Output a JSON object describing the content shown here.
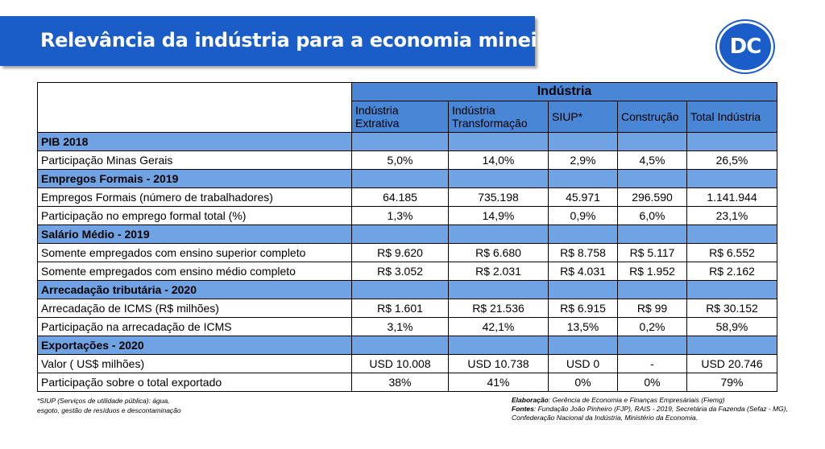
{
  "title": "Relevância da indústria para a economia mineira",
  "logo_text": "DC",
  "colors": {
    "brand_blue": "#1a5cc8",
    "header_blue": "#4a86d6",
    "section_blue": "#6fa3e3"
  },
  "table": {
    "group_header": "Indústria",
    "columns": [
      {
        "line1": "Indústria",
        "line2": "Extrativa"
      },
      {
        "line1": "Indústria",
        "line2": "Transformação"
      },
      {
        "line1": "SIUP*",
        "line2": ""
      },
      {
        "line1": "Construção",
        "line2": ""
      },
      {
        "line1": "Total Indústria",
        "line2": ""
      }
    ],
    "sections": [
      {
        "title": "PIB 2018",
        "rows": [
          {
            "label": "Participação Minas Gerais",
            "values": [
              "5,0%",
              "14,0%",
              "2,9%",
              "4,5%",
              "26,5%"
            ]
          }
        ]
      },
      {
        "title": "Empregos Formais - 2019",
        "rows": [
          {
            "label": "Empregos Formais (número de trabalhadores)",
            "values": [
              "64.185",
              "735.198",
              "45.971",
              "296.590",
              "1.141.944"
            ]
          },
          {
            "label": "Participação no emprego formal total (%)",
            "values": [
              "1,3%",
              "14,9%",
              "0,9%",
              "6,0%",
              "23,1%"
            ]
          }
        ]
      },
      {
        "title": "Salário Médio - 2019",
        "rows": [
          {
            "label": "Somente empregados com ensino superior completo",
            "values": [
              "R$ 9.620",
              "R$ 6.680",
              "R$ 8.758",
              "R$ 5.117",
              "R$ 6.552"
            ]
          },
          {
            "label": "Somente empregados com ensino médio completo",
            "values": [
              "R$ 3.052",
              "R$ 2.031",
              "R$ 4.031",
              "R$ 1.952",
              "R$ 2.162"
            ]
          }
        ]
      },
      {
        "title": "Arrecadação tributária - 2020",
        "rows": [
          {
            "label": "Arrecadação de ICMS (R$ milhões)",
            "values": [
              "R$ 1.601",
              "R$ 21.536",
              "R$ 6.915",
              "R$ 99",
              "R$ 30.152"
            ]
          },
          {
            "label": "Participação na arrecadação de ICMS",
            "values": [
              "3,1%",
              "42,1%",
              "13,5%",
              "0,2%",
              "58,9%"
            ]
          }
        ]
      },
      {
        "title": "Exportações - 2020",
        "rows": [
          {
            "label": "Valor ( US$ milhões)",
            "values": [
              "USD 10.008",
              "USD 10.738",
              "USD 0",
              "-",
              "USD 20.746"
            ]
          },
          {
            "label": "Participação sobre o total exportado",
            "values": [
              "38%",
              "41%",
              "0%",
              "0%",
              "79%"
            ]
          }
        ]
      }
    ]
  },
  "footnote": {
    "line1": "*SIUP (Serviços de utilidade pública): água,",
    "line2": "esgoto, gestão de resíduos e descontaminação"
  },
  "sources": {
    "elab_label": "Elaboração",
    "elab_text": ": Gerência de Economia e Finanças Empresáriais (Fiemg)",
    "fontes_label": "Fontes",
    "fontes_text": ": Fundação João Pinheiro (FJP), RAIS - 2019, Secretária da Fazenda (Sefaz - MG),",
    "fontes_text2": "Confederação Nacional da Indústria, Ministério da Economia."
  }
}
